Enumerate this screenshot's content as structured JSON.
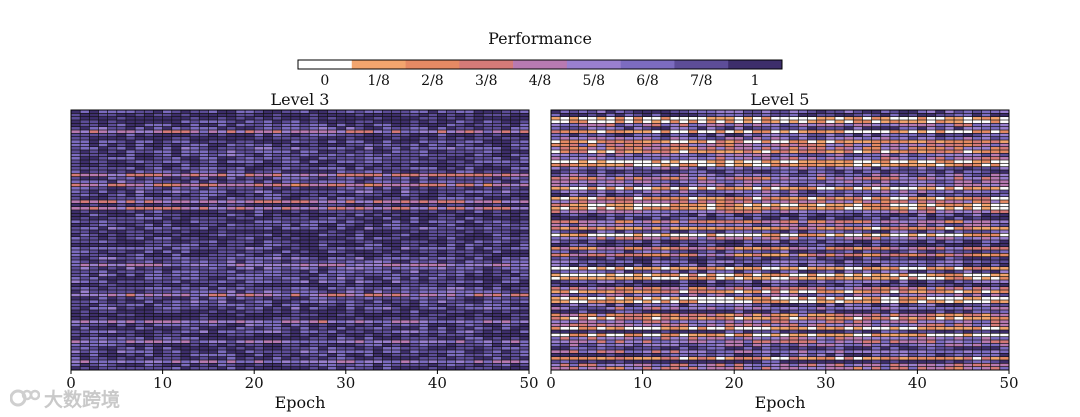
{
  "chart_data": {
    "type": "heatmap",
    "colorbar": {
      "title": "Performance",
      "tick_labels": [
        "0",
        "1/8",
        "2/8",
        "3/8",
        "4/8",
        "5/8",
        "6/8",
        "7/8",
        "1"
      ],
      "levels": [
        0,
        0.125,
        0.25,
        0.375,
        0.5,
        0.625,
        0.75,
        0.875,
        1
      ],
      "colors": [
        "#ffffff",
        "#f2a56e",
        "#e58a64",
        "#d57a78",
        "#b87ab1",
        "#9a80cf",
        "#7c6cc0",
        "#5d4d98",
        "#3d2e6b"
      ]
    },
    "panels": [
      {
        "title": "Level 3",
        "xlabel": "Epoch",
        "xlim": [
          0,
          50
        ],
        "xticks": [
          "0",
          "10",
          "20",
          "30",
          "40",
          "50"
        ],
        "n_rows": 78,
        "n_cols": 50,
        "mean_performance": 0.85,
        "distribution": "mostly high (7/8 to 1) with a few rows of lower values"
      },
      {
        "title": "Level 5",
        "xlabel": "Epoch",
        "xlim": [
          0,
          50
        ],
        "xticks": [
          "0",
          "10",
          "20",
          "30",
          "40",
          "50"
        ],
        "n_rows": 78,
        "n_cols": 50,
        "mean_performance": 0.55,
        "distribution": "mixed, with many rows of low (0 to 2/8) values"
      }
    ]
  },
  "watermark": {
    "text": "大数跨境"
  }
}
